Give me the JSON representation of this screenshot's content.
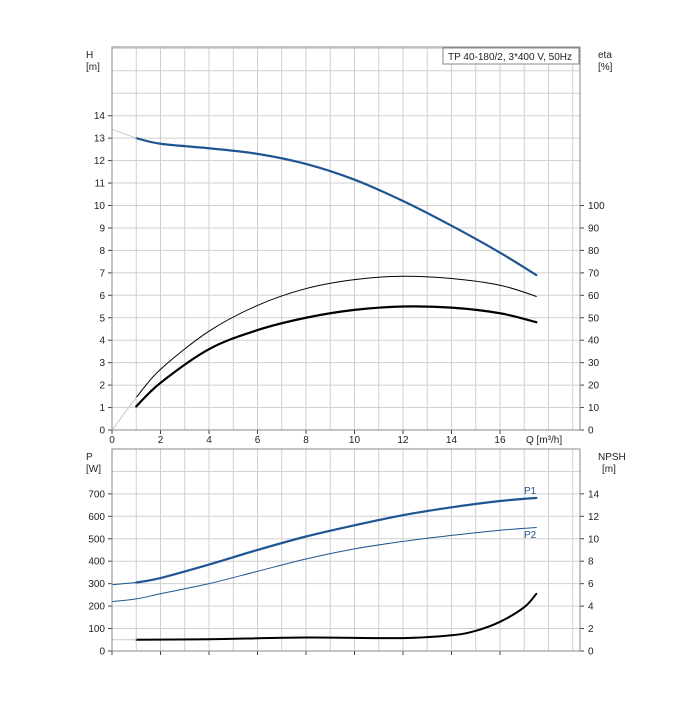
{
  "title_box": "TP 40-180/2, 3*400 V, 50Hz",
  "colors": {
    "blue": "#1f5592",
    "black": "#000000",
    "grid": "#cfcfcf"
  },
  "chart_data": [
    {
      "id": "head-efficiency",
      "type": "line",
      "x_label": "Q [m³/h]",
      "y_left_label": "H",
      "y_left_unit": "[m]",
      "y_right_label": "eta",
      "y_right_unit": "[%]",
      "xlim": [
        0,
        19.3
      ],
      "x_ticks": [
        "0",
        "2",
        "4",
        "6",
        "8",
        "10",
        "12",
        "14",
        "16"
      ],
      "y_left_ticks": [
        "0",
        "1",
        "2",
        "3",
        "4",
        "5",
        "6",
        "7",
        "8",
        "9",
        "10",
        "11",
        "12",
        "13",
        "14"
      ],
      "y_right_ticks": [
        "0",
        "10",
        "20",
        "30",
        "40",
        "50",
        "60",
        "70",
        "80",
        "90",
        "100"
      ],
      "series": [
        {
          "axis": "left",
          "color": "#1f5592",
          "width": 2.2,
          "x": [
            1,
            2,
            4,
            6,
            8,
            10,
            12,
            14,
            16,
            17.5
          ],
          "y": [
            13.0,
            12.75,
            12.55,
            12.3,
            11.85,
            11.15,
            10.2,
            9.1,
            7.9,
            6.9
          ]
        },
        {
          "axis": "left",
          "color": "#c8c8c8",
          "width": 1,
          "x": [
            0,
            1
          ],
          "y": [
            13.4,
            13.0
          ]
        },
        {
          "axis": "right",
          "color": "#000000",
          "width": 1,
          "x": [
            1,
            2,
            4,
            6,
            8,
            10,
            12,
            14,
            16,
            17.5
          ],
          "y": [
            14.5,
            27,
            44,
            55.5,
            63,
            67,
            68.5,
            67.5,
            64.5,
            59.5
          ]
        },
        {
          "axis": "right",
          "color": "#000000",
          "width": 2.2,
          "x": [
            1,
            2,
            4,
            6,
            8,
            10,
            12,
            14,
            16,
            17.5
          ],
          "y": [
            10.5,
            21,
            36,
            44.5,
            50,
            53.5,
            55,
            54.5,
            52,
            48
          ]
        },
        {
          "axis": "right",
          "color": "#c8c8c8",
          "width": 1,
          "x": [
            0,
            1
          ],
          "y": [
            0,
            14.5
          ]
        }
      ]
    },
    {
      "id": "power-npsh",
      "type": "line",
      "y_left_label": "P",
      "y_left_unit": "[W]",
      "y_right_label": "NPSH",
      "y_right_unit": "[m]",
      "xlim": [
        0,
        19.3
      ],
      "y_left_ticks": [
        "0",
        "100",
        "200",
        "300",
        "400",
        "500",
        "600",
        "700"
      ],
      "y_right_ticks": [
        "0",
        "2",
        "4",
        "6",
        "8",
        "10",
        "12",
        "14"
      ],
      "labels": {
        "p1": "P1",
        "p2": "P2"
      },
      "series": [
        {
          "name": "P1",
          "axis": "left",
          "color": "#1f5592",
          "width": 2.2,
          "x": [
            1,
            2,
            4,
            6,
            8,
            10,
            12,
            14,
            16,
            17.5
          ],
          "y": [
            305,
            325,
            385,
            450,
            510,
            560,
            605,
            640,
            668,
            682
          ]
        },
        {
          "name": "P2",
          "axis": "left",
          "color": "#1f5592",
          "width": 1,
          "x": [
            0,
            1,
            2,
            4,
            6,
            8,
            10,
            12,
            14,
            16,
            17.5
          ],
          "y": [
            220,
            232,
            255,
            300,
            355,
            410,
            455,
            488,
            515,
            538,
            550
          ]
        },
        {
          "axis": "left",
          "color": "#1f5592",
          "width": 1,
          "x": [
            0,
            1
          ],
          "y": [
            295,
            305
          ]
        },
        {
          "axis": "right",
          "color": "#000000",
          "width": 2,
          "x": [
            1,
            4,
            8,
            12,
            14,
            15,
            16,
            17,
            17.5
          ],
          "y": [
            1.0,
            1.05,
            1.2,
            1.15,
            1.4,
            1.8,
            2.6,
            3.9,
            5.1
          ]
        },
        {
          "axis": "right",
          "color": "#c8c8c8",
          "width": 1,
          "x": [
            0,
            1
          ],
          "y": [
            1.0,
            1.0
          ]
        }
      ]
    }
  ]
}
